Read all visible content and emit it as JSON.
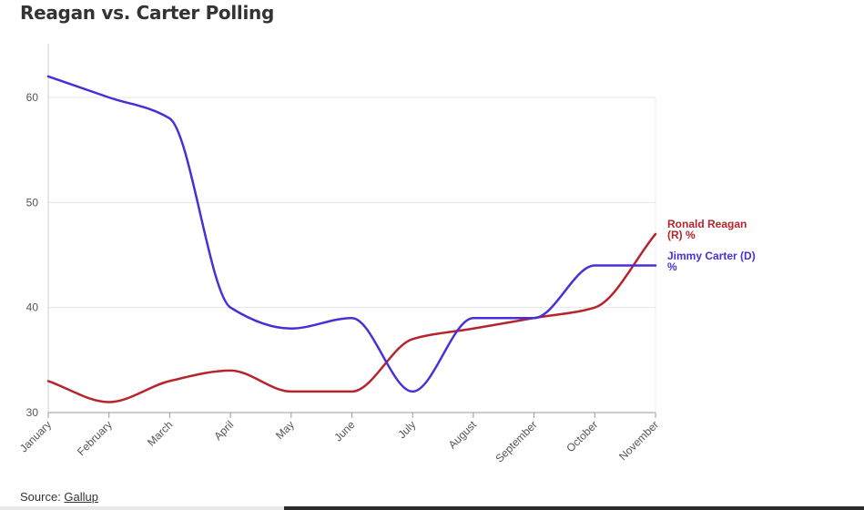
{
  "chart_data": {
    "type": "line",
    "title": "Reagan vs. Carter Polling",
    "categories": [
      "January",
      "February",
      "March",
      "April",
      "May",
      "June",
      "July",
      "August",
      "September",
      "October",
      "November"
    ],
    "series": [
      {
        "name": "Ronald Reagan (R) %",
        "label_lines": [
          "Ronald Reagan",
          "(R) %"
        ],
        "color": "#b5252b",
        "values": [
          33,
          31,
          33,
          34,
          32,
          32,
          37,
          38,
          39,
          40,
          47
        ]
      },
      {
        "name": "Jimmy Carter (D) %",
        "label_lines": [
          "Jimmy Carter (D)",
          "%"
        ],
        "color": "#4a2fd6",
        "values": [
          62,
          60,
          58,
          40,
          38,
          39,
          32,
          39,
          39,
          44,
          44
        ]
      }
    ],
    "y_ticks": [
      "30",
      "40",
      "50",
      "60"
    ],
    "ylim": [
      30,
      62
    ],
    "grid": true,
    "legend": "end-of-line labels"
  },
  "source": {
    "prefix": "Source: ",
    "link_text": "Gallup"
  }
}
